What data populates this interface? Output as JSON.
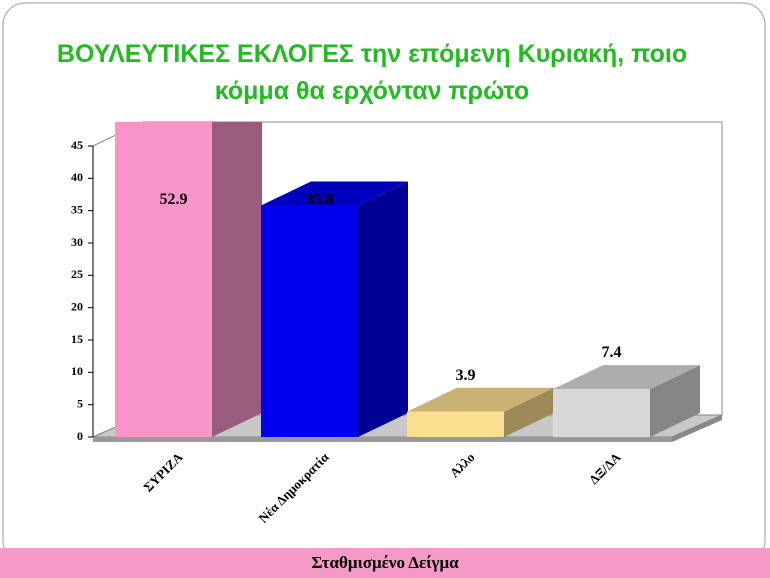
{
  "chart_data": {
    "type": "bar3d",
    "title": [
      "ΒΟΥΛΕΥΤΙΚΕΣ   ΕΚΛΟΓΕΣ  την επόμενη Κυριακή, ποιο",
      "κόμμα θα ερχόνταν πρώτο"
    ],
    "categories": [
      "ΣΥΡΙΖΑ",
      "Νέα Δημοκρατία",
      "Αλλο",
      "ΔΞ/ΔΑ"
    ],
    "values": [
      52.9,
      35.8,
      3.9,
      7.4
    ],
    "colors": [
      "#f794c8",
      "#0000ee",
      "#fbdf90",
      "#d8d8d8"
    ],
    "ylim": [
      0,
      45
    ],
    "yticks": [
      0,
      5,
      10,
      15,
      20,
      25,
      30,
      35,
      40,
      45
    ],
    "footer": "Σταθμισμένο Δείγμα"
  }
}
